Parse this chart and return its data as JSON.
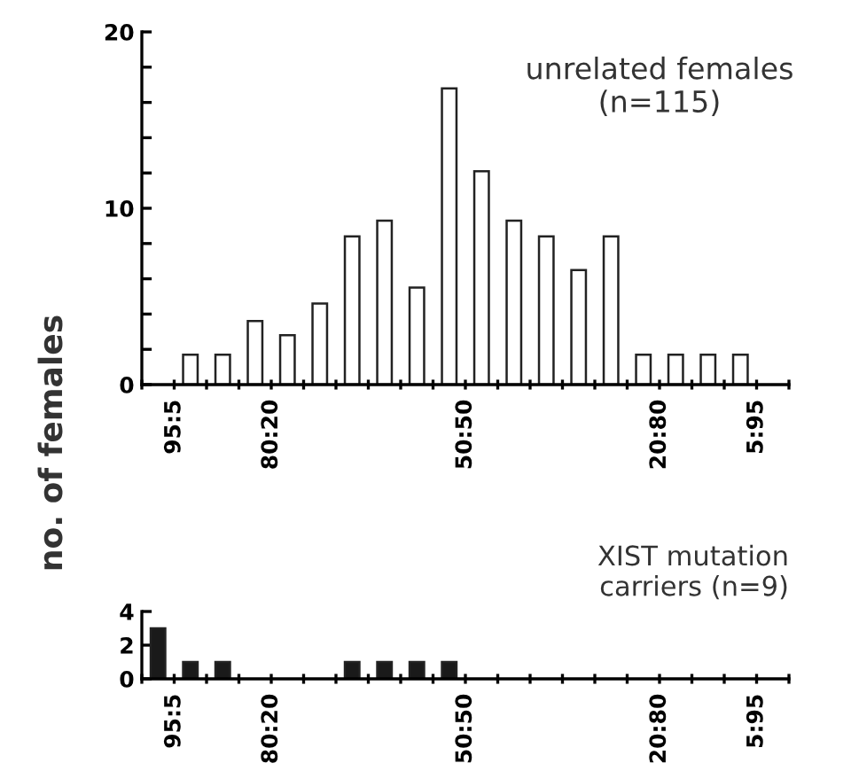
{
  "chart_data": [
    {
      "type": "bar",
      "title": "unrelated females\n(n=115)",
      "ylabel": "no. of females",
      "categories": [
        null,
        "95:5",
        null,
        null,
        "80:20",
        null,
        null,
        null,
        null,
        null,
        "50:50",
        null,
        null,
        null,
        null,
        null,
        "20:80",
        null,
        null,
        "5:95"
      ],
      "values": [
        0,
        1.7,
        1.7,
        3.6,
        2.8,
        4.6,
        8.4,
        9.3,
        5.5,
        16.8,
        12.1,
        9.3,
        8.4,
        6.5,
        8.4,
        1.7,
        1.7,
        1.7,
        1.7,
        0
      ],
      "color": "#ffffff",
      "ylim": [
        0,
        20
      ],
      "yticks": [
        0,
        {
          "value": 2,
          "label": null
        },
        {
          "value": 4,
          "label": null
        },
        {
          "value": 6,
          "label": null
        },
        {
          "value": 8,
          "label": null
        },
        10,
        {
          "value": 12,
          "label": null
        },
        {
          "value": 14,
          "label": null
        },
        {
          "value": 16,
          "label": null
        },
        {
          "value": 18,
          "label": null
        },
        20
      ]
    },
    {
      "type": "bar",
      "title": "XIST mutation\ncarriers (n=9)",
      "categories": [
        null,
        "95:5",
        null,
        null,
        "80:20",
        null,
        null,
        null,
        null,
        null,
        "50:50",
        null,
        null,
        null,
        null,
        null,
        "20:80",
        null,
        null,
        "5:95"
      ],
      "values": [
        3,
        1,
        1,
        0,
        0,
        0,
        1,
        1,
        1,
        1,
        0,
        0,
        0,
        0,
        0,
        0,
        0,
        0,
        0,
        0
      ],
      "color": "#1a1a1a",
      "ylim": [
        0,
        4
      ],
      "yticks": [
        0,
        2,
        4
      ]
    }
  ]
}
